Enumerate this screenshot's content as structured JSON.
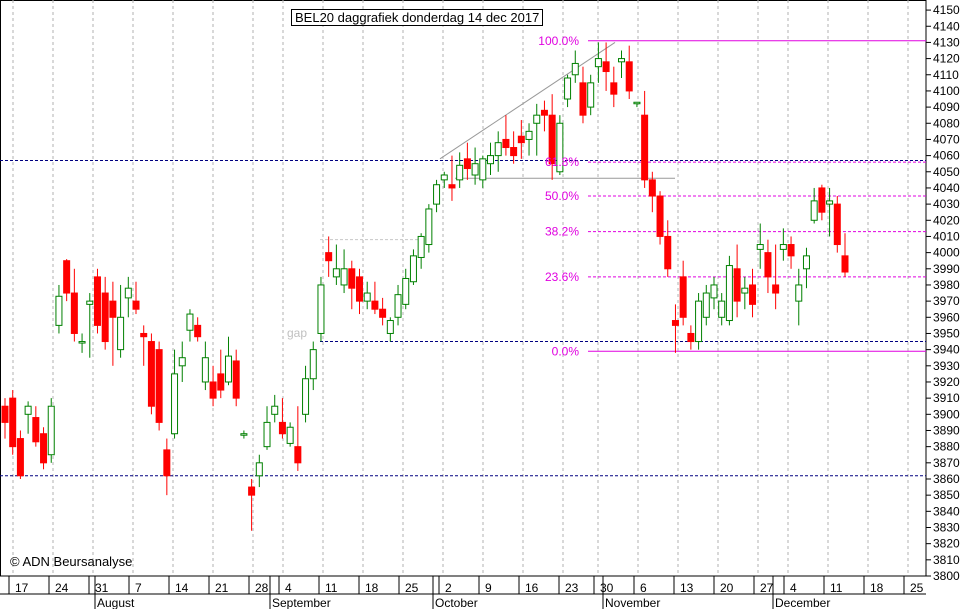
{
  "chart_data": {
    "type": "candlestick",
    "title": "BEL20 daggrafiek donderdag 14 dec 2017",
    "copyright": "© ADN Beursanalyse",
    "annotation_gap": "gap",
    "ylim": [
      3800,
      4155
    ],
    "y_ticks": [
      3800,
      3810,
      3820,
      3830,
      3840,
      3850,
      3860,
      3870,
      3880,
      3890,
      3900,
      3910,
      3920,
      3930,
      3940,
      3950,
      3960,
      3970,
      3980,
      3990,
      4000,
      4010,
      4020,
      4030,
      4040,
      4050,
      4060,
      4070,
      4080,
      4090,
      4100,
      4110,
      4120,
      4130,
      4140,
      4150
    ],
    "x_day_labels": [
      "17",
      "24",
      "31",
      "7",
      "14",
      "21",
      "28",
      "4",
      "11",
      "18",
      "25",
      "2",
      "9",
      "16",
      "23",
      "30",
      "6",
      "13",
      "20",
      "27",
      "4",
      "11",
      "18",
      "25"
    ],
    "month_labels": [
      "August",
      "September",
      "October",
      "November",
      "December"
    ],
    "fibonacci": [
      {
        "label": "100.0%",
        "value": 4131
      },
      {
        "label": "61.8%",
        "value": 4056
      },
      {
        "label": "50.0%",
        "value": 4035
      },
      {
        "label": "38.2%",
        "value": 4013
      },
      {
        "label": "23.6%",
        "value": 3985
      },
      {
        "label": "0.0%",
        "value": 3939
      }
    ],
    "support_resistance": [
      4057,
      3862,
      3945
    ],
    "grid": true,
    "colors": {
      "up": "#008000",
      "down": "#ff0000",
      "fib": "#e000e0",
      "level": "#000080"
    },
    "candles": [
      [
        3905,
        3910,
        3885,
        3895
      ],
      [
        3910,
        3915,
        3875,
        3880
      ],
      [
        3885,
        3890,
        3860,
        3862
      ],
      [
        3900,
        3908,
        3888,
        3905
      ],
      [
        3898,
        3905,
        3880,
        3883
      ],
      [
        3888,
        3892,
        3866,
        3870
      ],
      [
        3875,
        3910,
        3870,
        3905
      ],
      [
        3955,
        3980,
        3950,
        3973
      ],
      [
        3995,
        3996,
        3970,
        3975
      ],
      [
        3975,
        3990,
        3945,
        3950
      ],
      [
        3945,
        3950,
        3938,
        3945
      ],
      [
        3968,
        3975,
        3935,
        3970
      ],
      [
        3985,
        3990,
        3950,
        3955
      ],
      [
        3975,
        3985,
        3940,
        3945
      ],
      [
        3970,
        3982,
        3930,
        3960
      ],
      [
        3940,
        3980,
        3935,
        3960
      ],
      [
        3972,
        3985,
        3960,
        3978
      ],
      [
        3970,
        3982,
        3962,
        3965
      ],
      [
        3950,
        3955,
        3930,
        3948
      ],
      [
        3945,
        3950,
        3900,
        3905
      ],
      [
        3940,
        3945,
        3890,
        3895
      ],
      [
        3878,
        3885,
        3850,
        3862
      ],
      [
        3888,
        3940,
        3885,
        3925
      ],
      [
        3930,
        3945,
        3920,
        3935
      ],
      [
        3952,
        3965,
        3945,
        3962
      ],
      [
        3955,
        3960,
        3945,
        3948
      ],
      [
        3920,
        3945,
        3915,
        3935
      ],
      [
        3920,
        3930,
        3905,
        3910
      ],
      [
        3925,
        3940,
        3910,
        3915
      ],
      [
        3920,
        3948,
        3918,
        3936
      ],
      [
        3933,
        3940,
        3905,
        3910
      ],
      [
        3888,
        3890,
        3885,
        3888
      ],
      [
        3855,
        3860,
        3828,
        3850
      ],
      [
        3862,
        3875,
        3855,
        3870
      ],
      [
        3880,
        3905,
        3878,
        3895
      ],
      [
        3900,
        3912,
        3895,
        3905
      ],
      [
        3895,
        3910,
        3885,
        3888
      ],
      [
        3882,
        3895,
        3880,
        3892
      ],
      [
        3880,
        3905,
        3865,
        3870
      ],
      [
        3900,
        3930,
        3895,
        3922
      ],
      [
        3922,
        3945,
        3915,
        3940
      ],
      [
        3950,
        3985,
        3945,
        3980
      ],
      [
        4000,
        4010,
        3985,
        3995
      ],
      [
        3985,
        4005,
        3980,
        3990
      ],
      [
        3980,
        4002,
        3975,
        3990
      ],
      [
        3990,
        3995,
        3965,
        3978
      ],
      [
        3985,
        3990,
        3962,
        3970
      ],
      [
        3970,
        3982,
        3965,
        3975
      ],
      [
        3970,
        3982,
        3962,
        3965
      ],
      [
        3965,
        3972,
        3955,
        3960
      ],
      [
        3950,
        3960,
        3945,
        3958
      ],
      [
        3960,
        3980,
        3955,
        3974
      ],
      [
        3968,
        3990,
        3965,
        3984
      ],
      [
        3982,
        4002,
        3980,
        3998
      ],
      [
        3997,
        4012,
        3990,
        4010
      ],
      [
        4005,
        4030,
        4000,
        4027
      ],
      [
        4030,
        4045,
        4025,
        4042
      ],
      [
        4045,
        4050,
        4040,
        4048
      ],
      [
        4042,
        4060,
        4032,
        4040
      ],
      [
        4045,
        4062,
        4040,
        4054
      ],
      [
        4058,
        4068,
        4045,
        4052
      ],
      [
        4048,
        4065,
        4042,
        4055
      ],
      [
        4045,
        4060,
        4040,
        4058
      ],
      [
        4055,
        4068,
        4048,
        4060
      ],
      [
        4060,
        4075,
        4050,
        4068
      ],
      [
        4070,
        4085,
        4060,
        4065
      ],
      [
        4065,
        4075,
        4055,
        4060
      ],
      [
        4072,
        4082,
        4058,
        4068
      ],
      [
        4070,
        4080,
        4060,
        4075
      ],
      [
        4080,
        4092,
        4060,
        4085
      ],
      [
        4088,
        4094,
        4075,
        4085
      ],
      [
        4085,
        4098,
        4045,
        4055
      ],
      [
        4050,
        4085,
        4048,
        4080
      ],
      [
        4095,
        4110,
        4090,
        4108
      ],
      [
        4110,
        4125,
        4105,
        4117
      ],
      [
        4105,
        4115,
        4080,
        4085
      ],
      [
        4090,
        4110,
        4085,
        4105
      ],
      [
        4115,
        4130,
        4105,
        4120
      ],
      [
        4118,
        4130,
        4100,
        4112
      ],
      [
        4105,
        4115,
        4090,
        4098
      ],
      [
        4118,
        4125,
        4108,
        4120
      ],
      [
        4118,
        4128,
        4095,
        4100
      ],
      [
        4093,
        4093,
        4090,
        4093
      ],
      [
        4085,
        4100,
        4040,
        4045
      ],
      [
        4045,
        4050,
        4025,
        4035
      ],
      [
        4035,
        4038,
        4005,
        4010
      ],
      [
        4010,
        4020,
        3985,
        3990
      ],
      [
        3958,
        3968,
        3938,
        3955
      ],
      [
        3985,
        3995,
        3955,
        3960
      ],
      [
        3950,
        3955,
        3940,
        3945
      ],
      [
        3945,
        3975,
        3940,
        3970
      ],
      [
        3960,
        3980,
        3955,
        3975
      ],
      [
        3972,
        3985,
        3965,
        3980
      ],
      [
        3960,
        3975,
        3955,
        3970
      ],
      [
        3958,
        3998,
        3955,
        3992
      ],
      [
        3990,
        4005,
        3960,
        3970
      ],
      [
        3975,
        3985,
        3965,
        3978
      ],
      [
        3980,
        3990,
        3960,
        3968
      ],
      [
        4002,
        4018,
        3990,
        4005
      ],
      [
        4000,
        4008,
        3975,
        3985
      ],
      [
        3980,
        4005,
        3965,
        3975
      ],
      [
        4002,
        4015,
        3995,
        4005
      ],
      [
        4005,
        4010,
        3990,
        3998
      ],
      [
        3970,
        3990,
        3955,
        3980
      ],
      [
        3990,
        4003,
        3978,
        3998
      ],
      [
        4020,
        4040,
        4018,
        4032
      ],
      [
        4040,
        4042,
        4020,
        4025
      ],
      [
        4030,
        4040,
        4010,
        4032
      ],
      [
        4030,
        4035,
        4000,
        4005
      ],
      [
        3998,
        4012,
        3985,
        3988
      ]
    ]
  }
}
